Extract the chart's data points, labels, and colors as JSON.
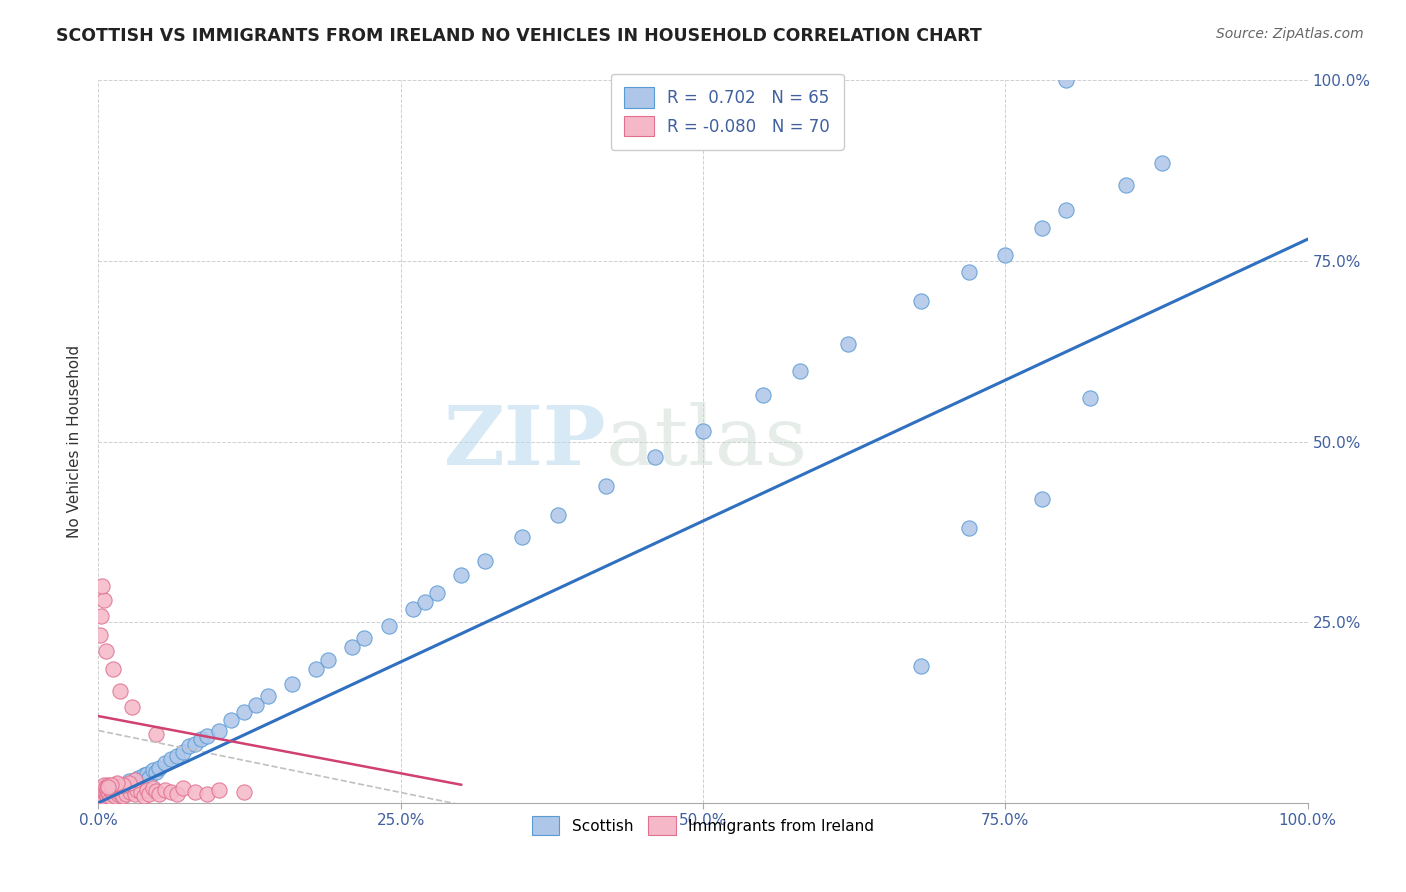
{
  "title": "SCOTTISH VS IMMIGRANTS FROM IRELAND NO VEHICLES IN HOUSEHOLD CORRELATION CHART",
  "source": "Source: ZipAtlas.com",
  "ylabel": "No Vehicles in Household",
  "watermark_zip": "ZIP",
  "watermark_atlas": "atlas",
  "legend_label1": "R =  0.702   N = 65",
  "legend_label2": "R = -0.080   N = 70",
  "xlim": [
    0.0,
    1.0
  ],
  "ylim": [
    0.0,
    1.0
  ],
  "xticks": [
    0.0,
    0.25,
    0.5,
    0.75,
    1.0
  ],
  "yticks": [
    0.0,
    0.25,
    0.5,
    0.75,
    1.0
  ],
  "xticklabels": [
    "0.0%",
    "25.0%",
    "50.0%",
    "75.0%",
    "100.0%"
  ],
  "yticklabels_right": [
    "",
    "25.0%",
    "50.0%",
    "75.0%",
    "100.0%"
  ],
  "color_scottish_face": "#aec6e8",
  "color_scottish_edge": "#5b9bd5",
  "color_ireland_face": "#f5b8c8",
  "color_ireland_edge": "#e07090",
  "line_color_blue": "#3070c0",
  "line_color_pink": "#d04070",
  "line_color_gray_dash": "#c0c0c0",
  "grid_color": "#d0d0d0",
  "title_color": "#222222",
  "source_color": "#666666",
  "tick_color": "#4060a0",
  "scottish_x": [
    0.005,
    0.008,
    0.01,
    0.012,
    0.015,
    0.016,
    0.018,
    0.019,
    0.02,
    0.022,
    0.025,
    0.028,
    0.03,
    0.033,
    0.035,
    0.038,
    0.04,
    0.042,
    0.045,
    0.048,
    0.05,
    0.055,
    0.06,
    0.065,
    0.07,
    0.075,
    0.08,
    0.085,
    0.09,
    0.1,
    0.11,
    0.12,
    0.13,
    0.14,
    0.16,
    0.18,
    0.19,
    0.21,
    0.22,
    0.24,
    0.26,
    0.27,
    0.28,
    0.3,
    0.32,
    0.35,
    0.38,
    0.42,
    0.46,
    0.5,
    0.55,
    0.58,
    0.62,
    0.68,
    0.72,
    0.75,
    0.78,
    0.8,
    0.85,
    0.88,
    0.78,
    0.82,
    0.72,
    0.68,
    0.8
  ],
  "scottish_y": [
    0.005,
    0.008,
    0.012,
    0.01,
    0.015,
    0.018,
    0.02,
    0.016,
    0.025,
    0.022,
    0.03,
    0.028,
    0.032,
    0.035,
    0.03,
    0.038,
    0.04,
    0.035,
    0.045,
    0.042,
    0.048,
    0.055,
    0.06,
    0.065,
    0.07,
    0.078,
    0.082,
    0.088,
    0.092,
    0.1,
    0.115,
    0.125,
    0.135,
    0.148,
    0.165,
    0.185,
    0.198,
    0.215,
    0.228,
    0.245,
    0.268,
    0.278,
    0.29,
    0.315,
    0.335,
    0.368,
    0.398,
    0.438,
    0.478,
    0.515,
    0.565,
    0.598,
    0.635,
    0.695,
    0.735,
    0.758,
    0.795,
    0.82,
    0.855,
    0.885,
    0.42,
    0.56,
    0.38,
    0.19,
    1.0
  ],
  "ireland_x": [
    0.001,
    0.002,
    0.002,
    0.003,
    0.003,
    0.004,
    0.004,
    0.005,
    0.005,
    0.005,
    0.006,
    0.006,
    0.007,
    0.007,
    0.008,
    0.008,
    0.009,
    0.009,
    0.01,
    0.01,
    0.011,
    0.012,
    0.012,
    0.013,
    0.014,
    0.015,
    0.015,
    0.016,
    0.017,
    0.018,
    0.019,
    0.02,
    0.021,
    0.022,
    0.023,
    0.025,
    0.026,
    0.028,
    0.03,
    0.032,
    0.035,
    0.038,
    0.04,
    0.042,
    0.045,
    0.048,
    0.05,
    0.055,
    0.06,
    0.065,
    0.07,
    0.08,
    0.09,
    0.1,
    0.03,
    0.025,
    0.02,
    0.015,
    0.01,
    0.008,
    0.005,
    0.003,
    0.002,
    0.001,
    0.006,
    0.012,
    0.018,
    0.028,
    0.048,
    0.12
  ],
  "ireland_y": [
    0.008,
    0.012,
    0.016,
    0.01,
    0.018,
    0.014,
    0.02,
    0.008,
    0.015,
    0.025,
    0.012,
    0.022,
    0.01,
    0.018,
    0.014,
    0.024,
    0.012,
    0.02,
    0.008,
    0.018,
    0.015,
    0.012,
    0.022,
    0.018,
    0.01,
    0.016,
    0.026,
    0.012,
    0.02,
    0.014,
    0.022,
    0.01,
    0.018,
    0.025,
    0.012,
    0.02,
    0.015,
    0.022,
    0.012,
    0.018,
    0.015,
    0.01,
    0.018,
    0.012,
    0.02,
    0.016,
    0.012,
    0.018,
    0.015,
    0.012,
    0.02,
    0.015,
    0.012,
    0.018,
    0.032,
    0.028,
    0.025,
    0.028,
    0.025,
    0.022,
    0.28,
    0.3,
    0.258,
    0.232,
    0.21,
    0.185,
    0.155,
    0.132,
    0.095,
    0.015
  ]
}
